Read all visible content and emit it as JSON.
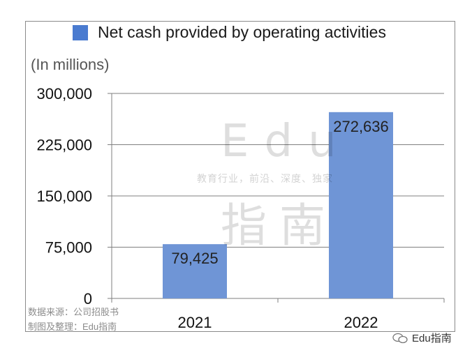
{
  "chart_data": {
    "type": "bar",
    "categories": [
      "2021",
      "2022"
    ],
    "series": [
      {
        "name": "Net cash provided by operating activities",
        "values": [
          79425,
          272636
        ]
      }
    ],
    "data_labels": [
      "79,425",
      "272,636"
    ],
    "unit_label": "(In millions)",
    "y_ticks": [
      "0",
      "75,000",
      "150,000",
      "225,000",
      "300,000"
    ],
    "ylim": [
      0,
      300000
    ],
    "grid": true,
    "legend_position": "top"
  },
  "source": {
    "line1": "数据来源：公司招股书",
    "line2": "制图及整理：Edu指南"
  },
  "watermark": {
    "edu": "Edu",
    "subtitle": "教育行业，前沿、深度、独家",
    "cn": "指南"
  },
  "brand": {
    "name": "Edu指南"
  },
  "colors": {
    "bar": "#6f95d6",
    "legend": "#4a7bd0",
    "grid": "#7f7f7f"
  }
}
